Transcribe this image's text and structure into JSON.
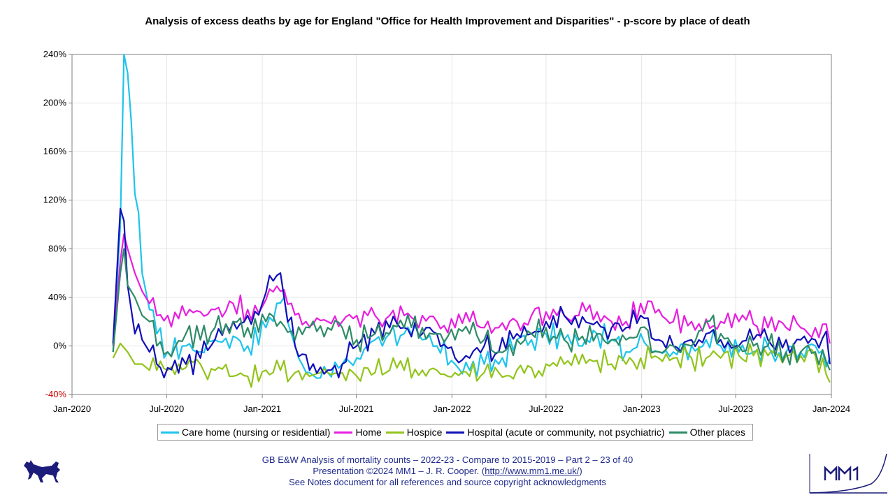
{
  "title": "Analysis of excess deaths by age for England \"Office for Health Improvement and Disparities\" - p-score by place of death",
  "footer": {
    "line1": "GB E&W Analysis of mortality counts – 2022-23 - Compare to 2015-2019 – Part 2 – 23 of 40",
    "line2_prefix": "Presentation ©2024 MM1 – J. R. Cooper. (",
    "line2_link": "http://www.mm1.me.uk/",
    "line2_suffix": ")",
    "line3": "See Notes document for all references and source copyright acknowledgments"
  },
  "chart_data": {
    "type": "line",
    "x_ticks": [
      "Jan-2020",
      "Jul-2020",
      "Jan-2021",
      "Jul-2021",
      "Jan-2022",
      "Jul-2022",
      "Jan-2023",
      "Jul-2023",
      "Jan-2024"
    ],
    "y_ticks": [
      "240%",
      "200%",
      "160%",
      "120%",
      "80%",
      "40%",
      "0%",
      "-40%"
    ],
    "ylim": [
      -40,
      240
    ],
    "xlim": [
      "2020-01-01",
      "2024-01-01"
    ],
    "grid": true,
    "legend_position": "bottom",
    "series": [
      {
        "name": "Care home (nursing or residential)",
        "color": "#1ec4ec",
        "anchors": [
          [
            "2020-03-20",
            -5
          ],
          [
            "2020-04-03",
            100
          ],
          [
            "2020-04-10",
            240
          ],
          [
            "2020-04-17",
            225
          ],
          [
            "2020-04-24",
            185
          ],
          [
            "2020-05-01",
            125
          ],
          [
            "2020-05-08",
            110
          ],
          [
            "2020-05-15",
            60
          ],
          [
            "2020-05-29",
            30
          ],
          [
            "2020-06-12",
            10
          ],
          [
            "2020-07-03",
            -5
          ],
          [
            "2020-08-07",
            0
          ],
          [
            "2020-09-04",
            -5
          ],
          [
            "2020-10-02",
            5
          ],
          [
            "2020-11-06",
            8
          ],
          [
            "2020-12-04",
            0
          ],
          [
            "2021-01-08",
            15
          ],
          [
            "2021-01-29",
            35
          ],
          [
            "2021-02-12",
            40
          ],
          [
            "2021-02-26",
            10
          ],
          [
            "2021-03-12",
            -10
          ],
          [
            "2021-04-02",
            -22
          ],
          [
            "2021-05-07",
            -22
          ],
          [
            "2021-06-04",
            -15
          ],
          [
            "2021-07-02",
            -10
          ],
          [
            "2021-08-06",
            5
          ],
          [
            "2021-09-03",
            10
          ],
          [
            "2021-10-01",
            10
          ],
          [
            "2021-11-05",
            5
          ],
          [
            "2021-12-03",
            0
          ],
          [
            "2022-01-07",
            -15
          ],
          [
            "2022-02-04",
            -20
          ],
          [
            "2022-03-04",
            -15
          ],
          [
            "2022-04-01",
            -15
          ],
          [
            "2022-05-06",
            5
          ],
          [
            "2022-06-03",
            5
          ],
          [
            "2022-07-01",
            10
          ],
          [
            "2022-08-05",
            5
          ],
          [
            "2022-09-02",
            0
          ],
          [
            "2022-10-07",
            10
          ],
          [
            "2022-11-04",
            5
          ],
          [
            "2022-12-02",
            -5
          ],
          [
            "2022-12-30",
            10
          ],
          [
            "2023-02-03",
            -5
          ],
          [
            "2023-03-03",
            -5
          ],
          [
            "2023-04-07",
            0
          ],
          [
            "2023-05-05",
            5
          ],
          [
            "2023-06-02",
            0
          ],
          [
            "2023-07-07",
            -5
          ],
          [
            "2023-08-04",
            -5
          ],
          [
            "2023-09-01",
            0
          ],
          [
            "2023-10-06",
            -5
          ],
          [
            "2023-11-03",
            -5
          ],
          [
            "2023-12-01",
            0
          ],
          [
            "2023-12-29",
            -10
          ]
        ]
      },
      {
        "name": "Home",
        "color": "#e81ee0",
        "anchors": [
          [
            "2020-03-20",
            0
          ],
          [
            "2020-04-03",
            70
          ],
          [
            "2020-04-10",
            92
          ],
          [
            "2020-04-17",
            80
          ],
          [
            "2020-05-01",
            60
          ],
          [
            "2020-05-15",
            45
          ],
          [
            "2020-05-29",
            35
          ],
          [
            "2020-06-12",
            25
          ],
          [
            "2020-07-03",
            25
          ],
          [
            "2020-08-07",
            25
          ],
          [
            "2020-09-04",
            28
          ],
          [
            "2020-10-02",
            30
          ],
          [
            "2020-11-06",
            35
          ],
          [
            "2020-12-04",
            30
          ],
          [
            "2021-01-08",
            38
          ],
          [
            "2021-02-05",
            45
          ],
          [
            "2021-02-26",
            35
          ],
          [
            "2021-03-26",
            20
          ],
          [
            "2021-05-07",
            20
          ],
          [
            "2021-06-04",
            20
          ],
          [
            "2021-07-02",
            25
          ],
          [
            "2021-08-06",
            25
          ],
          [
            "2021-09-03",
            25
          ],
          [
            "2021-10-01",
            25
          ],
          [
            "2021-11-05",
            25
          ],
          [
            "2021-12-03",
            20
          ],
          [
            "2022-01-07",
            15
          ],
          [
            "2022-02-04",
            20
          ],
          [
            "2022-03-04",
            15
          ],
          [
            "2022-04-01",
            15
          ],
          [
            "2022-05-06",
            20
          ],
          [
            "2022-06-03",
            25
          ],
          [
            "2022-07-01",
            28
          ],
          [
            "2022-08-05",
            25
          ],
          [
            "2022-09-02",
            25
          ],
          [
            "2022-10-07",
            28
          ],
          [
            "2022-11-04",
            20
          ],
          [
            "2022-12-02",
            20
          ],
          [
            "2022-12-30",
            35
          ],
          [
            "2023-02-03",
            30
          ],
          [
            "2023-03-03",
            20
          ],
          [
            "2023-04-07",
            20
          ],
          [
            "2023-05-05",
            22
          ],
          [
            "2023-06-02",
            20
          ],
          [
            "2023-07-07",
            20
          ],
          [
            "2023-08-04",
            18
          ],
          [
            "2023-09-01",
            15
          ],
          [
            "2023-10-06",
            15
          ],
          [
            "2023-11-03",
            15
          ],
          [
            "2023-12-01",
            15
          ],
          [
            "2023-12-22",
            18
          ],
          [
            "2023-12-29",
            2
          ]
        ]
      },
      {
        "name": "Hospice",
        "color": "#92c41b",
        "anchors": [
          [
            "2020-03-20",
            -10
          ],
          [
            "2020-04-03",
            2
          ],
          [
            "2020-04-17",
            -5
          ],
          [
            "2020-05-01",
            -15
          ],
          [
            "2020-05-15",
            -15
          ],
          [
            "2020-05-29",
            -20
          ],
          [
            "2020-06-12",
            -20
          ],
          [
            "2020-07-03",
            -20
          ],
          [
            "2020-08-07",
            -18
          ],
          [
            "2020-09-04",
            -15
          ],
          [
            "2020-10-02",
            -20
          ],
          [
            "2020-11-06",
            -25
          ],
          [
            "2020-12-04",
            -25
          ],
          [
            "2021-01-08",
            -20
          ],
          [
            "2021-02-05",
            -20
          ],
          [
            "2021-03-05",
            -22
          ],
          [
            "2021-04-02",
            -25
          ],
          [
            "2021-05-07",
            -22
          ],
          [
            "2021-06-04",
            -22
          ],
          [
            "2021-07-02",
            -25
          ],
          [
            "2021-08-06",
            -22
          ],
          [
            "2021-09-03",
            -20
          ],
          [
            "2021-10-01",
            -20
          ],
          [
            "2021-11-05",
            -20
          ],
          [
            "2021-12-03",
            -20
          ],
          [
            "2022-01-07",
            -22
          ],
          [
            "2022-02-04",
            -25
          ],
          [
            "2022-03-04",
            -22
          ],
          [
            "2022-04-01",
            -22
          ],
          [
            "2022-05-06",
            -20
          ],
          [
            "2022-06-03",
            -18
          ],
          [
            "2022-07-01",
            -15
          ],
          [
            "2022-08-05",
            -15
          ],
          [
            "2022-09-02",
            -15
          ],
          [
            "2022-10-07",
            -12
          ],
          [
            "2022-11-04",
            -15
          ],
          [
            "2022-12-02",
            -15
          ],
          [
            "2022-12-30",
            -10
          ],
          [
            "2023-02-03",
            -10
          ],
          [
            "2023-03-03",
            -10
          ],
          [
            "2023-04-07",
            -10
          ],
          [
            "2023-05-05",
            -10
          ],
          [
            "2023-06-02",
            -10
          ],
          [
            "2023-07-07",
            -8
          ],
          [
            "2023-08-04",
            -8
          ],
          [
            "2023-09-01",
            -8
          ],
          [
            "2023-10-06",
            -8
          ],
          [
            "2023-11-03",
            -8
          ],
          [
            "2023-12-01",
            -8
          ],
          [
            "2023-12-29",
            -30
          ]
        ]
      },
      {
        "name": "Hospital (acute or community, not psychiatric)",
        "color": "#1010b8",
        "anchors": [
          [
            "2020-03-20",
            2
          ],
          [
            "2020-04-03",
            113
          ],
          [
            "2020-04-10",
            103
          ],
          [
            "2020-04-17",
            50
          ],
          [
            "2020-04-24",
            30
          ],
          [
            "2020-05-01",
            10
          ],
          [
            "2020-05-08",
            18
          ],
          [
            "2020-05-15",
            5
          ],
          [
            "2020-05-29",
            -5
          ],
          [
            "2020-06-12",
            -15
          ],
          [
            "2020-07-03",
            -18
          ],
          [
            "2020-08-07",
            -15
          ],
          [
            "2020-09-04",
            -10
          ],
          [
            "2020-10-02",
            5
          ],
          [
            "2020-11-06",
            20
          ],
          [
            "2020-12-04",
            25
          ],
          [
            "2021-01-01",
            35
          ],
          [
            "2021-01-15",
            58
          ],
          [
            "2021-01-29",
            58
          ],
          [
            "2021-02-05",
            60
          ],
          [
            "2021-02-12",
            40
          ],
          [
            "2021-03-05",
            0
          ],
          [
            "2021-04-02",
            -20
          ],
          [
            "2021-05-07",
            -20
          ],
          [
            "2021-06-04",
            -15
          ],
          [
            "2021-07-02",
            0
          ],
          [
            "2021-08-06",
            10
          ],
          [
            "2021-09-03",
            15
          ],
          [
            "2021-10-01",
            15
          ],
          [
            "2021-11-05",
            10
          ],
          [
            "2021-12-03",
            10
          ],
          [
            "2022-01-07",
            -10
          ],
          [
            "2022-02-04",
            -10
          ],
          [
            "2022-03-04",
            0
          ],
          [
            "2022-04-01",
            -5
          ],
          [
            "2022-05-06",
            10
          ],
          [
            "2022-06-03",
            10
          ],
          [
            "2022-07-01",
            20
          ],
          [
            "2022-08-05",
            25
          ],
          [
            "2022-09-02",
            15
          ],
          [
            "2022-10-07",
            20
          ],
          [
            "2022-11-04",
            15
          ],
          [
            "2022-12-02",
            15
          ],
          [
            "2022-12-30",
            25
          ],
          [
            "2023-02-03",
            5
          ],
          [
            "2023-03-03",
            0
          ],
          [
            "2023-04-07",
            5
          ],
          [
            "2023-05-05",
            10
          ],
          [
            "2023-06-02",
            5
          ],
          [
            "2023-07-07",
            0
          ],
          [
            "2023-08-04",
            5
          ],
          [
            "2023-09-01",
            5
          ],
          [
            "2023-10-06",
            5
          ],
          [
            "2023-11-03",
            5
          ],
          [
            "2023-12-01",
            5
          ],
          [
            "2023-12-22",
            12
          ],
          [
            "2023-12-29",
            -15
          ]
        ]
      },
      {
        "name": "Other places",
        "color": "#2e8b67",
        "anchors": [
          [
            "2020-03-20",
            -5
          ],
          [
            "2020-04-03",
            60
          ],
          [
            "2020-04-10",
            80
          ],
          [
            "2020-04-17",
            50
          ],
          [
            "2020-05-01",
            40
          ],
          [
            "2020-05-15",
            25
          ],
          [
            "2020-05-29",
            20
          ],
          [
            "2020-06-12",
            0
          ],
          [
            "2020-07-03",
            -5
          ],
          [
            "2020-08-07",
            10
          ],
          [
            "2020-09-04",
            5
          ],
          [
            "2020-10-02",
            15
          ],
          [
            "2020-11-06",
            20
          ],
          [
            "2020-12-04",
            15
          ],
          [
            "2021-01-08",
            20
          ],
          [
            "2021-02-05",
            20
          ],
          [
            "2021-03-05",
            5
          ],
          [
            "2021-04-02",
            15
          ],
          [
            "2021-05-07",
            15
          ],
          [
            "2021-06-04",
            15
          ],
          [
            "2021-07-02",
            5
          ],
          [
            "2021-08-06",
            10
          ],
          [
            "2021-09-03",
            10
          ],
          [
            "2021-10-01",
            15
          ],
          [
            "2021-11-05",
            15
          ],
          [
            "2021-12-03",
            10
          ],
          [
            "2022-01-07",
            5
          ],
          [
            "2022-02-04",
            10
          ],
          [
            "2022-03-04",
            5
          ],
          [
            "2022-04-01",
            -5
          ],
          [
            "2022-05-06",
            5
          ],
          [
            "2022-06-03",
            10
          ],
          [
            "2022-07-01",
            15
          ],
          [
            "2022-08-05",
            5
          ],
          [
            "2022-09-02",
            5
          ],
          [
            "2022-10-07",
            10
          ],
          [
            "2022-11-04",
            5
          ],
          [
            "2022-12-02",
            5
          ],
          [
            "2022-12-30",
            15
          ],
          [
            "2023-02-03",
            -5
          ],
          [
            "2023-03-03",
            0
          ],
          [
            "2023-04-07",
            0
          ],
          [
            "2023-05-05",
            20
          ],
          [
            "2023-06-02",
            10
          ],
          [
            "2023-07-07",
            0
          ],
          [
            "2023-08-04",
            0
          ],
          [
            "2023-09-01",
            0
          ],
          [
            "2023-10-06",
            -5
          ],
          [
            "2023-11-03",
            -5
          ],
          [
            "2023-12-01",
            -5
          ],
          [
            "2023-12-29",
            -20
          ]
        ]
      }
    ]
  }
}
